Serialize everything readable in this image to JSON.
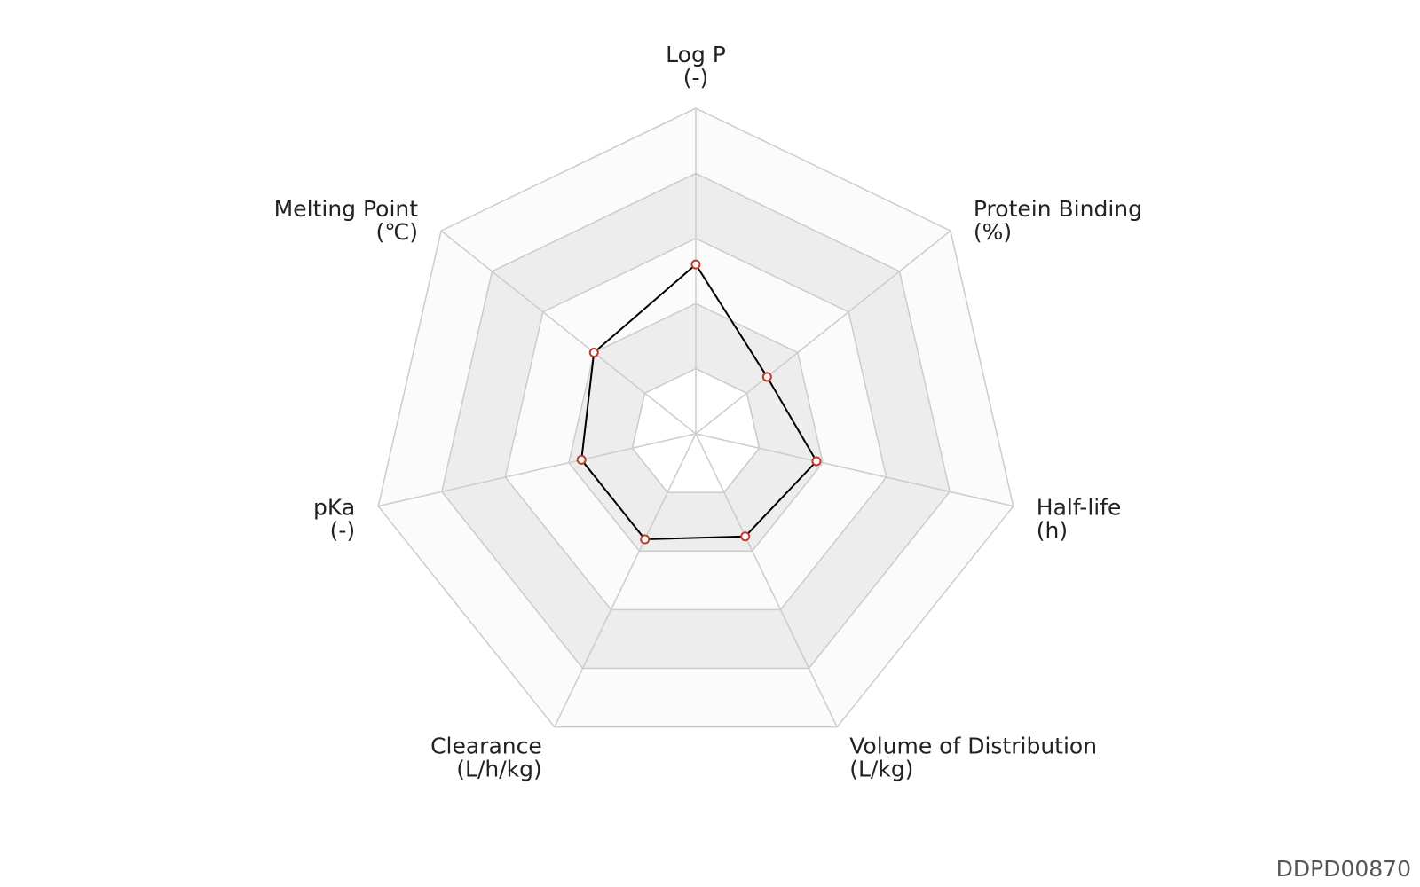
{
  "chart_data": {
    "type": "radar",
    "categories": [
      "Log P",
      "Protein Binding",
      "Half-life",
      "Volume of Distribution",
      "Clearance",
      "pKa",
      "Melting Point"
    ],
    "units": [
      "(-)",
      "(%)",
      "(h)",
      "(L/kg)",
      "(L/h/kg)",
      "(-)",
      "(℃)"
    ],
    "values": [
      2.6,
      1.4,
      1.9,
      1.75,
      1.8,
      1.8,
      2.0
    ],
    "rlim": [
      0,
      5
    ],
    "rticks": [
      1,
      2,
      3,
      4,
      5
    ],
    "color": "#000000",
    "marker_color": "#c0392b"
  },
  "watermark": "DDPD00870"
}
